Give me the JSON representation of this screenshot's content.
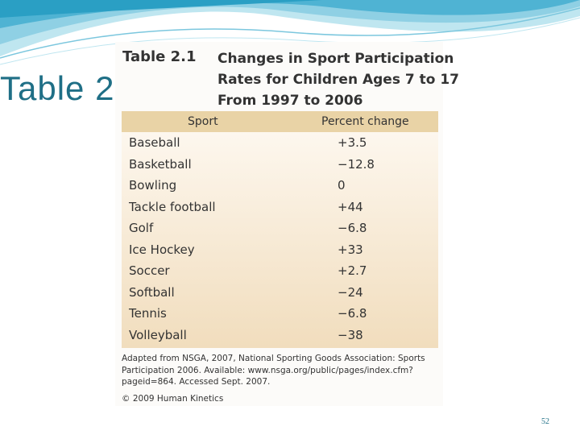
{
  "slide": {
    "title": "Table 2",
    "page_number": "52"
  },
  "table": {
    "label": "Table 2.1",
    "title_lines": [
      "Changes in Sport Participation",
      "Rates for Children Ages 7 to 17",
      "From 1997 to 2006"
    ],
    "columns": [
      "Sport",
      "Percent change"
    ],
    "rows": [
      {
        "sport": "Baseball",
        "change": "+3.5"
      },
      {
        "sport": "Basketball",
        "change": "−12.8"
      },
      {
        "sport": "Bowling",
        "change": "0"
      },
      {
        "sport": "Tackle football",
        "change": "+44"
      },
      {
        "sport": "Golf",
        "change": "−6.8"
      },
      {
        "sport": "Ice Hockey",
        "change": "+33"
      },
      {
        "sport": "Soccer",
        "change": "+2.7"
      },
      {
        "sport": "Softball",
        "change": "−24"
      },
      {
        "sport": "Tennis",
        "change": "−6.8"
      },
      {
        "sport": "Volleyball",
        "change": "−38"
      }
    ],
    "source_note": "Adapted from NSGA, 2007, National Sporting Goods Association: Sports Participation 2006. Available: www.nsga.org/public/pages/index.cfm?pageid=864. Accessed Sept. 2007.",
    "copyright": "© 2009 Human Kinetics"
  },
  "colors": {
    "title": "#1f6f86",
    "header_band": "#e9d3a6",
    "wave_dark": "#2a9fc4",
    "wave_light": "#a9dcea"
  }
}
